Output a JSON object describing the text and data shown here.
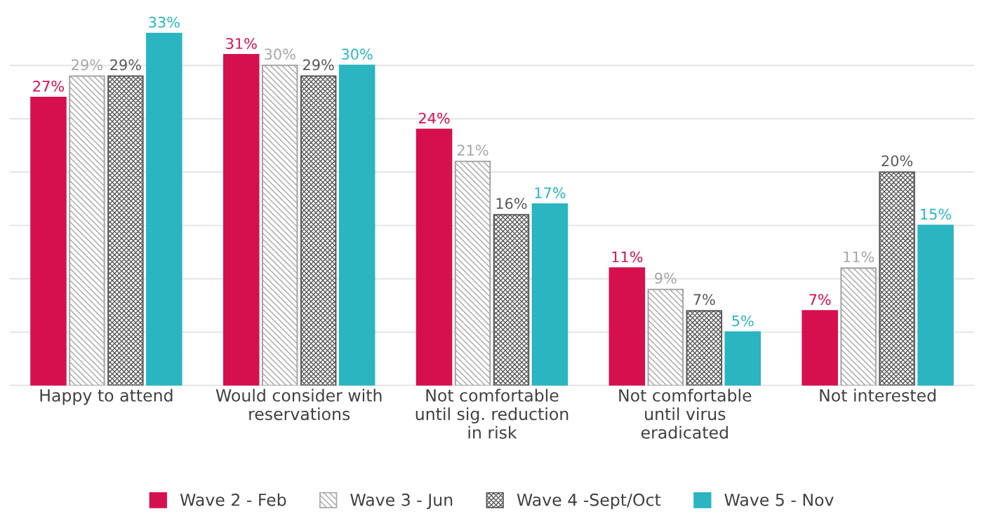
{
  "chart_data": {
    "type": "bar",
    "categories": [
      "Happy to attend",
      "Would consider with\nreservations",
      "Not comfortable\nuntil sig. reduction\nin risk",
      "Not comfortable\nuntil virus\neradicated",
      "Not interested"
    ],
    "series": [
      {
        "name": "Wave 2 - Feb",
        "color": "#d6104f",
        "values": [
          27,
          31,
          24,
          11,
          7
        ],
        "value_labels": [
          "27%",
          "31%",
          "24%",
          "11%",
          "7%"
        ]
      },
      {
        "name": "Wave 3 - Jun",
        "color": "#a6a6a6",
        "values": [
          29,
          30,
          21,
          9,
          11
        ],
        "value_labels": [
          "29%",
          "30%",
          "21%",
          "9%",
          "11%"
        ]
      },
      {
        "name": "Wave 4 -Sept/Oct",
        "color": "#595959",
        "values": [
          29,
          29,
          16,
          7,
          20
        ],
        "value_labels": [
          "29%",
          "29%",
          "16%",
          "7%",
          "20%"
        ]
      },
      {
        "name": "Wave 5 - Nov",
        "color": "#2ab5c1",
        "values": [
          33,
          30,
          17,
          5,
          15
        ],
        "value_labels": [
          "33%",
          "30%",
          "17%",
          "5%",
          "15%"
        ]
      }
    ],
    "tick_labels": "x",
    "grid": "y",
    "legend": "bottom"
  }
}
